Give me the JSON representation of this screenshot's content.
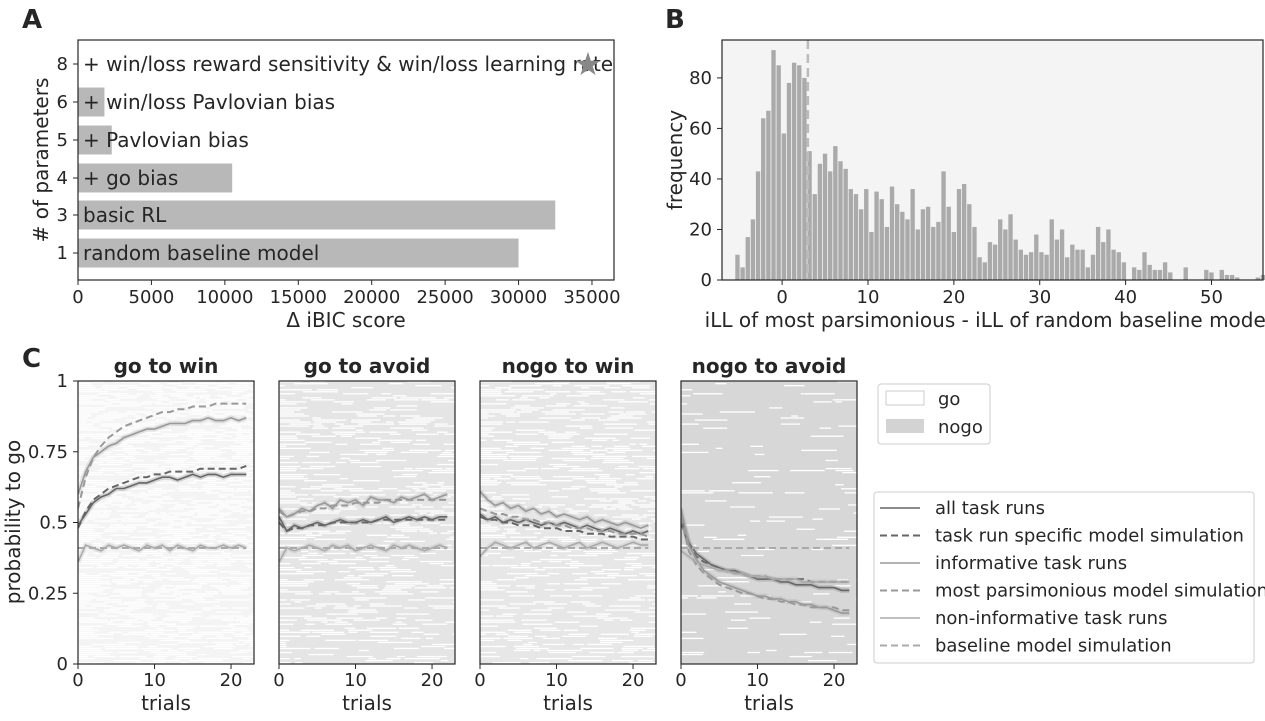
{
  "panel_labels": [
    "A",
    "B",
    "C"
  ],
  "colors": {
    "bar": "#b8b8b8",
    "hist_bar": "#aaaaaa",
    "hist_bg": "#f4f4f4",
    "nogo_fill": "#d3d3d3",
    "go_fill": "#ffffff",
    "star": "#888888",
    "line_dark": "#666666",
    "line_mid": "#888888",
    "line_light": "#aaaaaa"
  },
  "chart_data": [
    {
      "id": "A",
      "type": "bar",
      "orientation": "horizontal",
      "xlabel": "Δ iBIC score",
      "ylabel": "# of parameters",
      "xlim": [
        0,
        36500
      ],
      "xticks": [
        "0",
        "5000",
        "10000",
        "15000",
        "20000",
        "25000",
        "30000",
        "35000"
      ],
      "categories": [
        "8",
        "6",
        "5",
        "4",
        "3",
        "1"
      ],
      "bar_labels": [
        "+ win/loss reward sensitivity & win/loss learning rate",
        "+ win/loss Pavlovian bias",
        "+ Pavlovian bias",
        "+ go bias",
        "basic RL",
        "random baseline model"
      ],
      "values": [
        0,
        1800,
        2300,
        10500,
        32500,
        30000
      ],
      "marker": {
        "category": "8",
        "symbol": "★",
        "meaning": "winning model"
      }
    },
    {
      "id": "B",
      "type": "bar",
      "subtype": "histogram",
      "xlabel": "iLL of most parsimonious - iLL of random baseline model",
      "ylabel": "frequency",
      "xlim": [
        -7,
        56
      ],
      "ylim": [
        0,
        95
      ],
      "xticks": [
        "0",
        "10",
        "20",
        "30",
        "40",
        "50"
      ],
      "yticks": [
        "0",
        "20",
        "40",
        "60",
        "80"
      ],
      "bin_start": -5.5,
      "bin_width": 0.6,
      "counts": [
        10,
        5,
        17,
        24,
        43,
        64,
        67,
        91,
        85,
        58,
        78,
        86,
        85,
        80,
        51,
        34,
        46,
        50,
        43,
        53,
        47,
        44,
        36,
        34,
        28,
        36,
        19,
        35,
        32,
        21,
        37,
        30,
        27,
        24,
        36,
        20,
        28,
        29,
        21,
        23,
        43,
        29,
        19,
        36,
        38,
        30,
        21,
        9,
        7,
        15,
        14,
        24,
        20,
        26,
        16,
        12,
        10,
        11,
        18,
        11,
        10,
        24,
        16,
        20,
        9,
        14,
        12,
        12,
        5,
        10,
        21,
        15,
        20,
        12,
        11,
        7,
        0,
        5,
        4,
        11,
        6,
        4,
        4,
        7,
        3,
        0,
        0,
        5,
        0,
        0,
        0,
        4,
        3,
        0,
        4,
        2,
        2,
        1,
        0,
        0,
        0,
        1,
        2,
        0,
        0,
        0,
        0,
        3
      ],
      "vline": {
        "x": 3,
        "style": "dashed"
      }
    },
    {
      "id": "C",
      "type": "line",
      "ylabel": "probability to go",
      "xlabel": "trials",
      "xlim": [
        0,
        23
      ],
      "ylim": [
        0,
        1
      ],
      "xticks": [
        "0",
        "10",
        "20"
      ],
      "yticks": [
        "0",
        "0.25",
        "0.5",
        "0.75",
        "1"
      ],
      "background_legend": [
        {
          "name": "go",
          "color": "#ffffff"
        },
        {
          "name": "nogo",
          "color": "#d3d3d3"
        }
      ],
      "line_legend": [
        {
          "name": "all task runs",
          "style": "solid",
          "color": "#666666"
        },
        {
          "name": "task run specific model simulation",
          "style": "dashed",
          "color": "#666666"
        },
        {
          "name": "informative task runs",
          "style": "solid",
          "color": "#999999"
        },
        {
          "name": "most parsimonious model simulation",
          "style": "dashed",
          "color": "#999999"
        },
        {
          "name": "non-informative task runs",
          "style": "solid",
          "color": "#aaaaaa"
        },
        {
          "name": "baseline model simulation",
          "style": "dashed",
          "color": "#aaaaaa"
        }
      ],
      "conditions": [
        {
          "title": "go to win",
          "go_fraction": 0.82,
          "series": [
            {
              "name": "all task runs",
              "values": [
                0.49,
                0.53,
                0.57,
                0.59,
                0.6,
                0.62,
                0.62,
                0.63,
                0.64,
                0.64,
                0.65,
                0.66,
                0.66,
                0.65,
                0.66,
                0.67,
                0.66,
                0.67,
                0.67,
                0.66,
                0.67,
                0.67,
                0.67
              ]
            },
            {
              "name": "task run specific model simulation",
              "values": [
                0.48,
                0.54,
                0.58,
                0.6,
                0.62,
                0.63,
                0.64,
                0.65,
                0.66,
                0.66,
                0.67,
                0.67,
                0.68,
                0.68,
                0.68,
                0.68,
                0.69,
                0.69,
                0.69,
                0.69,
                0.69,
                0.69,
                0.7
              ]
            },
            {
              "name": "informative task runs",
              "values": [
                0.6,
                0.68,
                0.73,
                0.75,
                0.77,
                0.78,
                0.8,
                0.81,
                0.82,
                0.83,
                0.83,
                0.84,
                0.85,
                0.85,
                0.85,
                0.86,
                0.86,
                0.87,
                0.86,
                0.86,
                0.87,
                0.86,
                0.87
              ]
            },
            {
              "name": "most parsimonious model simulation",
              "values": [
                0.55,
                0.66,
                0.73,
                0.77,
                0.8,
                0.82,
                0.84,
                0.85,
                0.86,
                0.87,
                0.88,
                0.89,
                0.89,
                0.9,
                0.9,
                0.91,
                0.91,
                0.91,
                0.92,
                0.92,
                0.92,
                0.92,
                0.92
              ]
            },
            {
              "name": "non-informative task runs",
              "values": [
                0.36,
                0.42,
                0.41,
                0.4,
                0.42,
                0.41,
                0.42,
                0.41,
                0.4,
                0.42,
                0.41,
                0.42,
                0.4,
                0.42,
                0.41,
                0.4,
                0.42,
                0.41,
                0.41,
                0.42,
                0.41,
                0.42,
                0.41
              ]
            },
            {
              "name": "baseline model simulation",
              "values": [
                0.41,
                0.41,
                0.41,
                0.41,
                0.41,
                0.41,
                0.41,
                0.41,
                0.41,
                0.41,
                0.41,
                0.41,
                0.41,
                0.41,
                0.41,
                0.41,
                0.41,
                0.41,
                0.41,
                0.41,
                0.41,
                0.41,
                0.41
              ]
            }
          ]
        },
        {
          "title": "go to avoid",
          "go_fraction": 0.45,
          "series": [
            {
              "name": "all task runs",
              "values": [
                0.52,
                0.47,
                0.49,
                0.48,
                0.49,
                0.5,
                0.49,
                0.5,
                0.51,
                0.5,
                0.5,
                0.51,
                0.5,
                0.51,
                0.52,
                0.5,
                0.51,
                0.52,
                0.51,
                0.52,
                0.51,
                0.52,
                0.52
              ]
            },
            {
              "name": "task run specific model simulation",
              "values": [
                0.5,
                0.47,
                0.48,
                0.48,
                0.49,
                0.49,
                0.49,
                0.5,
                0.5,
                0.5,
                0.5,
                0.5,
                0.5,
                0.51,
                0.51,
                0.51,
                0.51,
                0.51,
                0.51,
                0.51,
                0.51,
                0.51,
                0.51
              ]
            },
            {
              "name": "informative task runs",
              "values": [
                0.55,
                0.52,
                0.53,
                0.55,
                0.54,
                0.56,
                0.57,
                0.55,
                0.58,
                0.57,
                0.58,
                0.56,
                0.59,
                0.58,
                0.58,
                0.57,
                0.59,
                0.58,
                0.59,
                0.6,
                0.58,
                0.59,
                0.6
              ]
            },
            {
              "name": "most parsimonious model simulation",
              "values": [
                0.54,
                0.52,
                0.53,
                0.54,
                0.54,
                0.55,
                0.55,
                0.56,
                0.56,
                0.56,
                0.57,
                0.57,
                0.57,
                0.57,
                0.58,
                0.58,
                0.58,
                0.58,
                0.58,
                0.58,
                0.58,
                0.58,
                0.58
              ]
            },
            {
              "name": "non-informative task runs",
              "values": [
                0.36,
                0.41,
                0.4,
                0.41,
                0.42,
                0.41,
                0.4,
                0.42,
                0.41,
                0.42,
                0.4,
                0.41,
                0.42,
                0.41,
                0.4,
                0.42,
                0.41,
                0.42,
                0.41,
                0.4,
                0.41,
                0.42,
                0.41
              ]
            },
            {
              "name": "baseline model simulation",
              "values": [
                0.41,
                0.41,
                0.41,
                0.41,
                0.41,
                0.41,
                0.41,
                0.41,
                0.41,
                0.41,
                0.41,
                0.41,
                0.41,
                0.41,
                0.41,
                0.41,
                0.41,
                0.41,
                0.41,
                0.41,
                0.41,
                0.41,
                0.41
              ]
            }
          ]
        },
        {
          "title": "nogo to win",
          "go_fraction": 0.5,
          "series": [
            {
              "name": "all task runs",
              "values": [
                0.53,
                0.51,
                0.52,
                0.5,
                0.51,
                0.5,
                0.51,
                0.5,
                0.49,
                0.5,
                0.49,
                0.5,
                0.49,
                0.48,
                0.49,
                0.48,
                0.47,
                0.48,
                0.47,
                0.46,
                0.47,
                0.46,
                0.47
              ]
            },
            {
              "name": "task run specific model simulation",
              "values": [
                0.52,
                0.51,
                0.51,
                0.5,
                0.5,
                0.49,
                0.49,
                0.49,
                0.48,
                0.48,
                0.48,
                0.47,
                0.47,
                0.47,
                0.46,
                0.46,
                0.46,
                0.45,
                0.45,
                0.45,
                0.45,
                0.44,
                0.44
              ]
            },
            {
              "name": "informative task runs",
              "values": [
                0.61,
                0.58,
                0.56,
                0.57,
                0.55,
                0.56,
                0.54,
                0.55,
                0.53,
                0.54,
                0.52,
                0.53,
                0.52,
                0.51,
                0.52,
                0.5,
                0.51,
                0.5,
                0.49,
                0.5,
                0.49,
                0.48,
                0.49
              ]
            },
            {
              "name": "most parsimonious model simulation",
              "values": [
                0.55,
                0.54,
                0.53,
                0.53,
                0.52,
                0.52,
                0.51,
                0.51,
                0.5,
                0.5,
                0.49,
                0.49,
                0.48,
                0.48,
                0.48,
                0.47,
                0.47,
                0.47,
                0.46,
                0.46,
                0.46,
                0.46,
                0.45
              ]
            },
            {
              "name": "non-informative task runs",
              "values": [
                0.38,
                0.41,
                0.43,
                0.42,
                0.41,
                0.42,
                0.43,
                0.41,
                0.42,
                0.43,
                0.42,
                0.41,
                0.42,
                0.43,
                0.41,
                0.42,
                0.43,
                0.42,
                0.41,
                0.42,
                0.43,
                0.42,
                0.42
              ]
            },
            {
              "name": "baseline model simulation",
              "values": [
                0.41,
                0.41,
                0.41,
                0.41,
                0.41,
                0.41,
                0.41,
                0.41,
                0.41,
                0.41,
                0.41,
                0.41,
                0.41,
                0.41,
                0.41,
                0.41,
                0.41,
                0.41,
                0.41,
                0.41,
                0.41,
                0.41,
                0.41
              ]
            }
          ]
        },
        {
          "title": "nogo to avoid",
          "go_fraction": 0.12,
          "series": [
            {
              "name": "all task runs",
              "values": [
                0.52,
                0.43,
                0.39,
                0.37,
                0.35,
                0.34,
                0.33,
                0.33,
                0.32,
                0.31,
                0.3,
                0.3,
                0.3,
                0.29,
                0.29,
                0.28,
                0.28,
                0.28,
                0.27,
                0.27,
                0.27,
                0.26,
                0.26
              ]
            },
            {
              "name": "task run specific model simulation",
              "values": [
                0.5,
                0.42,
                0.38,
                0.36,
                0.35,
                0.34,
                0.33,
                0.32,
                0.32,
                0.31,
                0.31,
                0.31,
                0.3,
                0.3,
                0.3,
                0.3,
                0.3,
                0.29,
                0.29,
                0.29,
                0.29,
                0.29,
                0.29
              ]
            },
            {
              "name": "informative task runs",
              "values": [
                0.55,
                0.42,
                0.37,
                0.33,
                0.31,
                0.29,
                0.28,
                0.27,
                0.26,
                0.25,
                0.24,
                0.24,
                0.23,
                0.23,
                0.22,
                0.22,
                0.21,
                0.21,
                0.2,
                0.2,
                0.19,
                0.18,
                0.18
              ]
            },
            {
              "name": "most parsimonious model simulation",
              "values": [
                0.52,
                0.4,
                0.35,
                0.32,
                0.3,
                0.28,
                0.27,
                0.26,
                0.25,
                0.25,
                0.24,
                0.23,
                0.23,
                0.22,
                0.22,
                0.21,
                0.21,
                0.2,
                0.2,
                0.2,
                0.2,
                0.19,
                0.19
              ]
            },
            {
              "name": "non-informative task runs",
              "values": [
                0.4,
                0.38,
                0.36,
                0.35,
                0.34,
                0.33,
                0.33,
                0.32,
                0.32,
                0.31,
                0.31,
                0.31,
                0.3,
                0.3,
                0.3,
                0.3,
                0.29,
                0.29,
                0.29,
                0.29,
                0.29,
                0.29,
                0.29
              ]
            },
            {
              "name": "baseline model simulation",
              "values": [
                0.41,
                0.41,
                0.41,
                0.41,
                0.41,
                0.41,
                0.41,
                0.41,
                0.41,
                0.41,
                0.41,
                0.41,
                0.41,
                0.41,
                0.41,
                0.41,
                0.41,
                0.41,
                0.41,
                0.41,
                0.41,
                0.41,
                0.41
              ]
            }
          ]
        }
      ]
    }
  ]
}
